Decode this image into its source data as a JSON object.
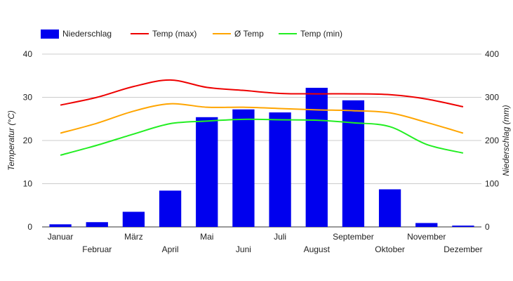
{
  "chart_data": {
    "type": "bar+line",
    "categories": [
      "Januar",
      "Februar",
      "März",
      "April",
      "Mai",
      "Juni",
      "Juli",
      "August",
      "September",
      "Oktober",
      "November",
      "Dezember"
    ],
    "series": [
      {
        "name": "Niederschlag",
        "kind": "bar",
        "axis": "right",
        "color": "#0000ee",
        "values": [
          6,
          11,
          35,
          84,
          254,
          272,
          265,
          322,
          293,
          87,
          9,
          3
        ]
      },
      {
        "name": "Temp (max)",
        "kind": "line",
        "axis": "left",
        "color": "#ee0000",
        "values": [
          28.2,
          30.0,
          32.5,
          34.0,
          32.3,
          31.6,
          30.9,
          30.8,
          30.8,
          30.6,
          29.6,
          27.8
        ]
      },
      {
        "name": "Ø Temp",
        "kind": "line",
        "axis": "left",
        "color": "#ffa500",
        "values": [
          21.7,
          24.0,
          26.8,
          28.5,
          27.7,
          27.7,
          27.4,
          27.1,
          26.9,
          26.4,
          24.2,
          21.7
        ]
      },
      {
        "name": "Temp (min)",
        "kind": "line",
        "axis": "left",
        "color": "#22ee22",
        "values": [
          16.6,
          18.9,
          21.5,
          23.9,
          24.5,
          24.9,
          24.8,
          24.7,
          24.1,
          23.2,
          19.1,
          17.1
        ]
      }
    ],
    "left_axis": {
      "label": "Temperatur (°C)",
      "ylim": [
        0,
        40
      ],
      "ticks": [
        "0",
        "10",
        "20",
        "30",
        "40"
      ]
    },
    "right_axis": {
      "label": "Niederschlag (mm)",
      "ylim": [
        0,
        400
      ],
      "ticks": [
        "0",
        "100",
        "200",
        "300",
        "400"
      ]
    },
    "grid": true,
    "legend_position": "top-left"
  }
}
